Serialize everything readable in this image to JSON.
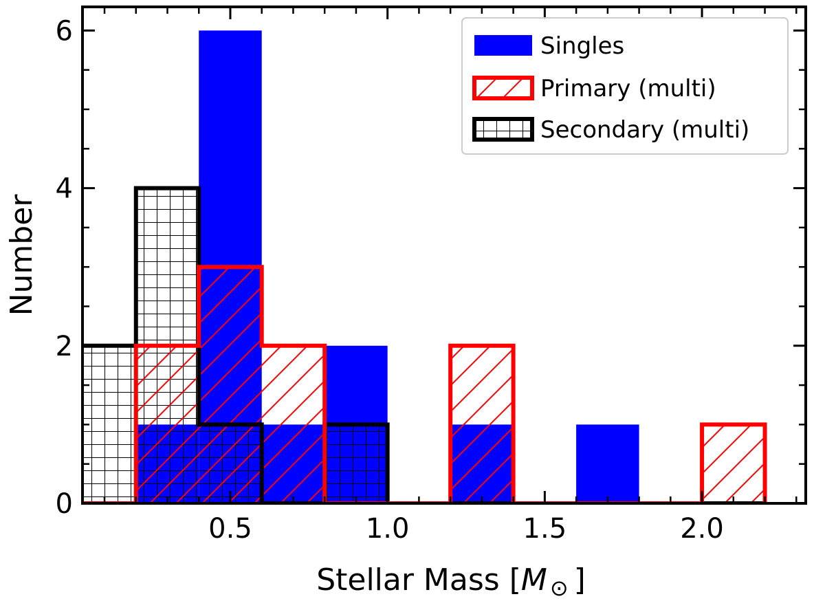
{
  "chart_data": {
    "type": "histogram",
    "title": "",
    "xlabel": "Stellar Mass [",
    "xlabel_math": "M",
    "xlabel_sub": "⊙",
    "xlabel_close": "]",
    "ylabel": "Number",
    "xlim": [
      0.03,
      2.33
    ],
    "ylim": [
      0,
      6.3
    ],
    "xticks": [
      0.5,
      1.0,
      1.5,
      2.0
    ],
    "xtick_labels": [
      "0.5",
      "1.0",
      "1.5",
      "2.0"
    ],
    "yticks": [
      0,
      2,
      4,
      6
    ],
    "ytick_labels": [
      "0",
      "2",
      "4",
      "6"
    ],
    "bin_edges": [
      0.0,
      0.2,
      0.4,
      0.6,
      0.8,
      1.0,
      1.2,
      1.4,
      1.6,
      1.8,
      2.0,
      2.2
    ],
    "series": [
      {
        "name": "Singles",
        "style": "filled",
        "color": "#0000ff",
        "values": [
          0,
          1,
          6,
          1,
          2,
          0,
          1,
          0,
          1,
          0,
          0
        ]
      },
      {
        "name": "Primary (multi)",
        "style": "step-hatch-diagonal",
        "color": "#ff0000",
        "values": [
          0,
          2,
          3,
          2,
          0,
          0,
          2,
          0,
          0,
          0,
          1
        ]
      },
      {
        "name": "Secondary (multi)",
        "style": "step-hatch-grid",
        "color": "#000000",
        "values": [
          2,
          4,
          1,
          0,
          1,
          0,
          0,
          0,
          0,
          0,
          0
        ]
      }
    ],
    "legend": {
      "position": "top-right",
      "entries": [
        "Singles",
        "Primary (multi)",
        "Secondary (multi)"
      ]
    }
  }
}
